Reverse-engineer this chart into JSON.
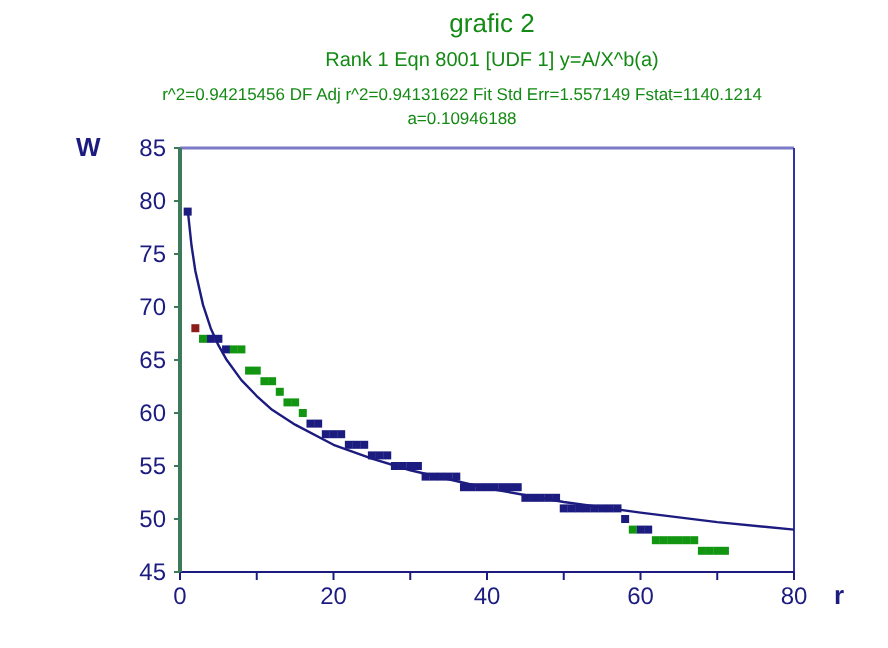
{
  "chart_data": {
    "type": "scatter",
    "title": "grafic 2",
    "subtitle": "Rank 1  Eqn 8001  [UDF 1] y=A/X^b(a)",
    "annotations": [
      "r^2=0.94215456   DF Adj r^2=0.94131622   Fit Std Err=1.557149   Fstat=1140.1214",
      "a=0.10946188"
    ],
    "xlabel": "r",
    "ylabel": "W",
    "marker": "square",
    "grid": false,
    "xlim": [
      0,
      80
    ],
    "xticks": [
      0,
      {
        "value": 10,
        "label": null
      },
      20,
      {
        "value": 30,
        "label": null
      },
      40,
      {
        "value": 50,
        "label": null
      },
      60,
      {
        "value": 70,
        "label": null
      },
      80
    ],
    "ylim": [
      45,
      85
    ],
    "yticks": [
      45,
      50,
      55,
      60,
      65,
      70,
      75,
      80,
      85
    ],
    "series": [
      {
        "color": "#1c1c80",
        "x": [
          1,
          4,
          5,
          6,
          17,
          18,
          19,
          20,
          21,
          22,
          23,
          24,
          25,
          26,
          27,
          28,
          29,
          30,
          31,
          32,
          33,
          34,
          35,
          36,
          37,
          38,
          39,
          40,
          41,
          42,
          43,
          44,
          45,
          46,
          47,
          48,
          49,
          50,
          51,
          52,
          53,
          54,
          55,
          56,
          57,
          58,
          60,
          61
        ],
        "values": [
          79,
          67,
          67,
          66,
          59,
          59,
          58,
          58,
          58,
          57,
          57,
          57,
          56,
          56,
          56,
          55,
          55,
          55,
          55,
          54,
          54,
          54,
          54,
          54,
          53,
          53,
          53,
          53,
          53,
          53,
          53,
          53,
          52,
          52,
          52,
          52,
          52,
          51,
          51,
          51,
          51,
          51,
          51,
          51,
          51,
          50,
          49,
          49
        ]
      },
      {
        "color": "#129612",
        "x": [
          3,
          7,
          8,
          9,
          10,
          11,
          12,
          13,
          14,
          15,
          16,
          59,
          62,
          63,
          64,
          65,
          66,
          67,
          68,
          69,
          70,
          71
        ],
        "values": [
          67,
          66,
          66,
          64,
          64,
          63,
          63,
          62,
          61,
          61,
          60,
          49,
          48,
          48,
          48,
          48,
          48,
          48,
          47,
          47,
          47,
          47
        ]
      },
      {
        "color": "#8c1c1c",
        "x": [
          2
        ],
        "values": [
          68
        ]
      },
      {
        "type": "line",
        "marker": "none",
        "color": "#1c1c80",
        "x": [
          1,
          1.5,
          2,
          3,
          4,
          5,
          6,
          8,
          10,
          12,
          15,
          20,
          25,
          30,
          40,
          50,
          60,
          70,
          80
        ],
        "values": [
          79.2,
          75.8,
          73.4,
          70.2,
          68.0,
          66.4,
          65.1,
          63.1,
          61.6,
          60.3,
          58.9,
          57.0,
          55.7,
          54.6,
          52.9,
          51.6,
          50.6,
          49.7,
          49.0
        ]
      }
    ]
  }
}
